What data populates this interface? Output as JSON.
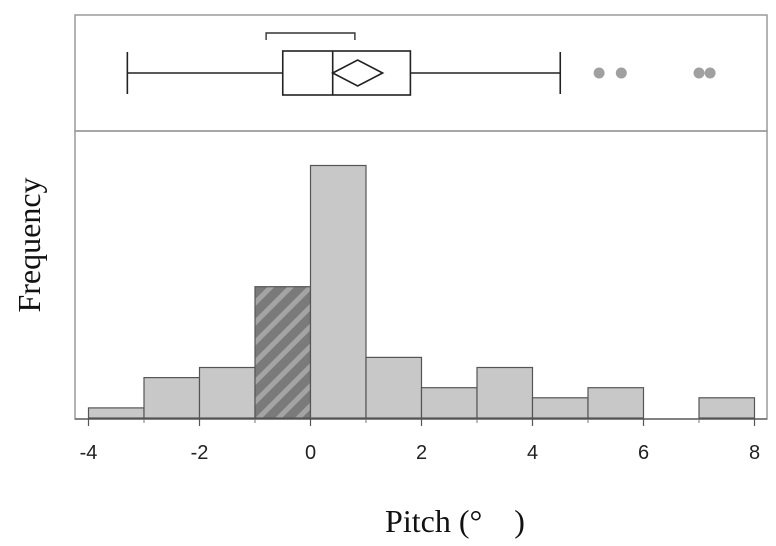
{
  "chart_data": {
    "type": "histogram",
    "title": "",
    "xlabel": "Pitch (° )",
    "ylabel": "Frequency",
    "xlim": [
      -4.2,
      8.2
    ],
    "x_ticks": [
      -4,
      -2,
      0,
      2,
      4,
      6,
      8
    ],
    "x_tick_labels": [
      "-4",
      "-2",
      "0",
      "2",
      "4",
      "6",
      "8"
    ],
    "bin_edges": [
      -4,
      -3,
      -2,
      -1,
      0,
      1,
      2,
      3,
      4,
      5,
      6,
      7,
      8
    ],
    "counts": [
      1,
      4,
      5,
      13,
      25,
      6,
      3,
      5,
      2,
      3,
      0,
      2
    ],
    "highlighted_bin": 3,
    "y_axis_labels_shown": false,
    "boxplot": {
      "whisker_low": -3.3,
      "q1": -0.5,
      "median": 0.4,
      "q3": 1.8,
      "whisker_high": 4.5,
      "mean": 0.85,
      "mean_ci_half_width": 0.45,
      "shortest_half": [
        -0.8,
        0.8
      ],
      "outliers": [
        5.2,
        5.6,
        7.0,
        7.2
      ]
    },
    "colors": {
      "bar_fill": "#c8c8c8",
      "bar_stroke": "#555555",
      "highlight_fill": "#7a7a7a",
      "highlight_stripe": "#a4a4a4",
      "outlier": "#a0a0a0",
      "frame": "#9a9a9a"
    }
  }
}
